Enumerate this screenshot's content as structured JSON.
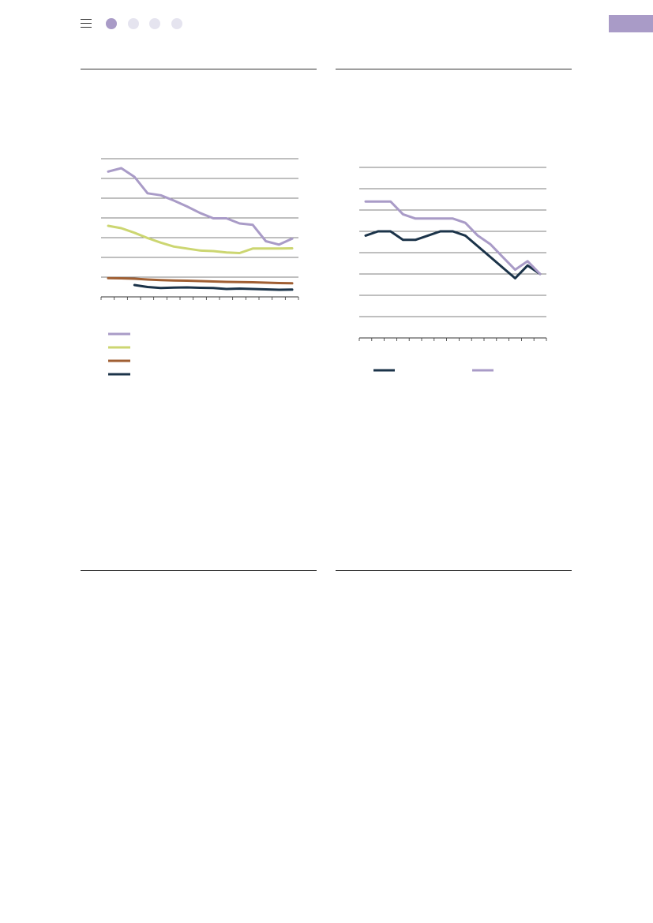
{
  "colors": {
    "purple": "#a99bc7",
    "yellow_green": "#ccd671",
    "brown": "#a05f33",
    "navy": "#1b3349",
    "dot_inactive": "#e5e4ef",
    "grid": "#555555"
  },
  "nav": {
    "menu_icon": "hamburger-menu-icon",
    "pages": [
      {
        "active": true
      },
      {
        "active": false
      },
      {
        "active": false
      },
      {
        "active": false
      }
    ]
  },
  "chart_data": [
    {
      "type": "line",
      "grid": true,
      "ylim": [
        0,
        7
      ],
      "x": [
        1,
        2,
        3,
        4,
        5,
        6,
        7,
        8,
        9,
        10,
        11,
        12,
        13,
        14,
        15
      ],
      "series": [
        {
          "color": "#a99bc7",
          "values": [
            6.35,
            6.52,
            6.08,
            5.25,
            5.15,
            4.88,
            4.58,
            4.25,
            3.98,
            3.98,
            3.72,
            3.65,
            2.82,
            2.65,
            2.95
          ]
        },
        {
          "color": "#ccd671",
          "values": [
            3.6,
            3.48,
            3.25,
            2.98,
            2.75,
            2.55,
            2.45,
            2.35,
            2.32,
            2.25,
            2.22,
            2.45,
            2.45,
            2.45,
            2.46
          ]
        },
        {
          "color": "#a05f33",
          "values": [
            0.95,
            0.94,
            0.92,
            0.88,
            0.85,
            0.83,
            0.82,
            0.8,
            0.78,
            0.76,
            0.75,
            0.74,
            0.72,
            0.7,
            0.69
          ]
        },
        {
          "color": "#1b3349",
          "values": [
            null,
            null,
            0.6,
            0.5,
            0.45,
            0.47,
            0.48,
            0.46,
            0.45,
            0.4,
            0.42,
            0.4,
            0.38,
            0.36,
            0.37
          ]
        }
      ]
    },
    {
      "type": "line",
      "grid": true,
      "ylim": [
        0,
        8
      ],
      "x": [
        1,
        2,
        3,
        4,
        5,
        6,
        7,
        8,
        9,
        10,
        11,
        12,
        13,
        14,
        15
      ],
      "series": [
        {
          "color": "#1b3349",
          "values": [
            4.8,
            5.0,
            5.0,
            4.6,
            4.6,
            4.8,
            5.0,
            5.0,
            4.8,
            4.3,
            3.8,
            3.3,
            2.8,
            3.4,
            3.0
          ]
        },
        {
          "color": "#a99bc7",
          "values": [
            6.4,
            6.4,
            6.4,
            5.8,
            5.6,
            5.6,
            5.6,
            5.6,
            5.4,
            4.8,
            4.4,
            3.8,
            3.2,
            3.6,
            3.0
          ]
        }
      ]
    }
  ]
}
